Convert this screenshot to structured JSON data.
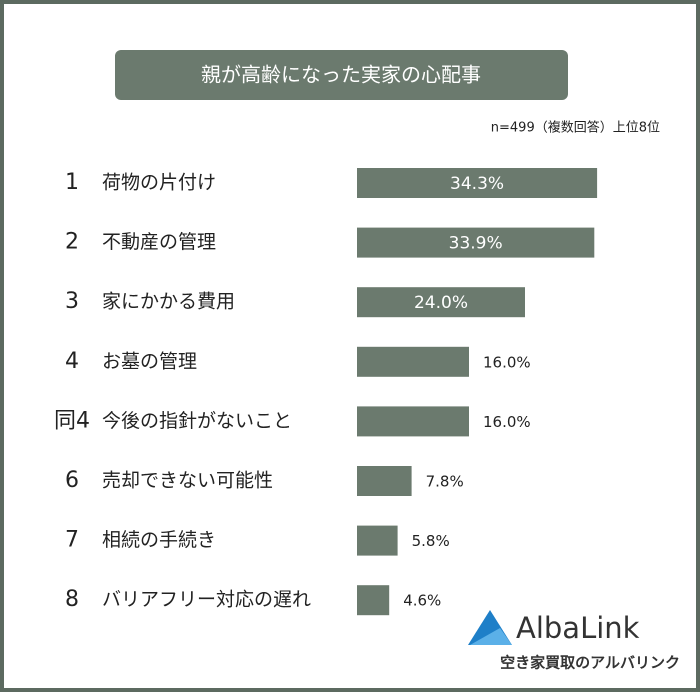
{
  "chart_data": {
    "type": "bar",
    "orientation": "horizontal",
    "title": "親が高齢になった実家の心配事",
    "subtitle": "n=499（複数回答）上位8位",
    "ranks": [
      "1",
      "2",
      "3",
      "4",
      "同4",
      "6",
      "7",
      "8"
    ],
    "categories": [
      "荷物の片付け",
      "不動産の管理",
      "家にかかる費用",
      "お墓の管理",
      "今後の指針がないこと",
      "売却できない可能性",
      "相続の手続き",
      "バリアフリー対応の遅れ"
    ],
    "values": [
      34.3,
      33.9,
      24.0,
      16.0,
      16.0,
      7.8,
      5.8,
      4.6
    ],
    "value_labels": [
      "34.3%",
      "33.9%",
      "24.0%",
      "16.0%",
      "16.0%",
      "7.8%",
      "5.8%",
      "4.6%"
    ],
    "color": "#6b7a6e",
    "logo": {
      "name": "AlbaLink",
      "tagline": "空き家買取のアルバリンク"
    }
  }
}
